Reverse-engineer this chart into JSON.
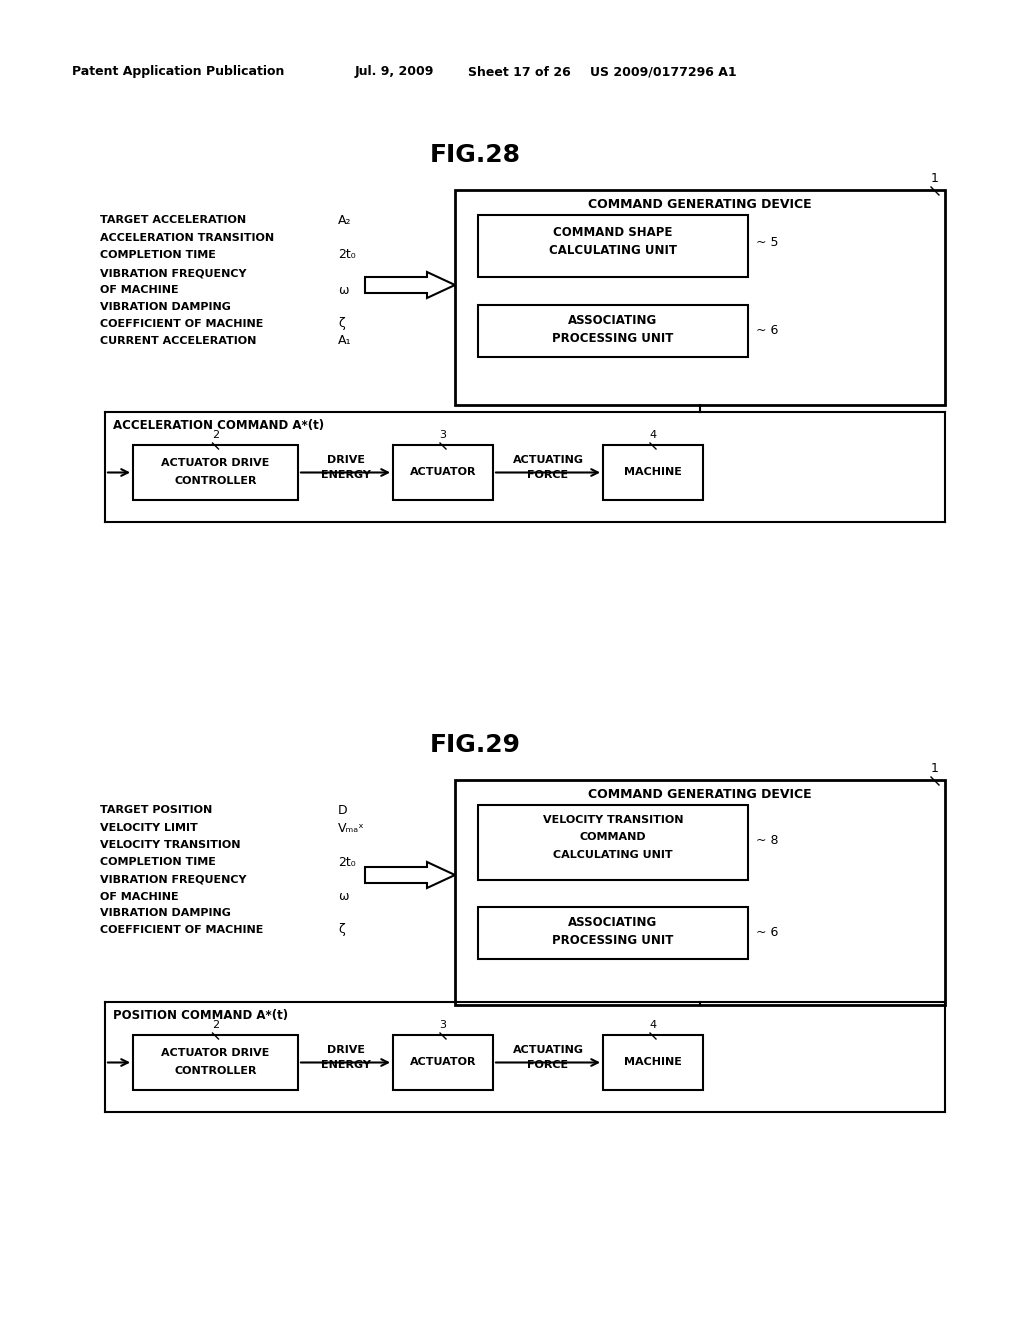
{
  "bg_color": "#ffffff",
  "header_text": "Patent Application Publication",
  "header_date": "Jul. 9, 2009",
  "header_sheet": "Sheet 17 of 26",
  "header_patent": "US 2009/0177296 A1",
  "fig28_title": "FIG.28",
  "fig29_title": "FIG.29"
}
